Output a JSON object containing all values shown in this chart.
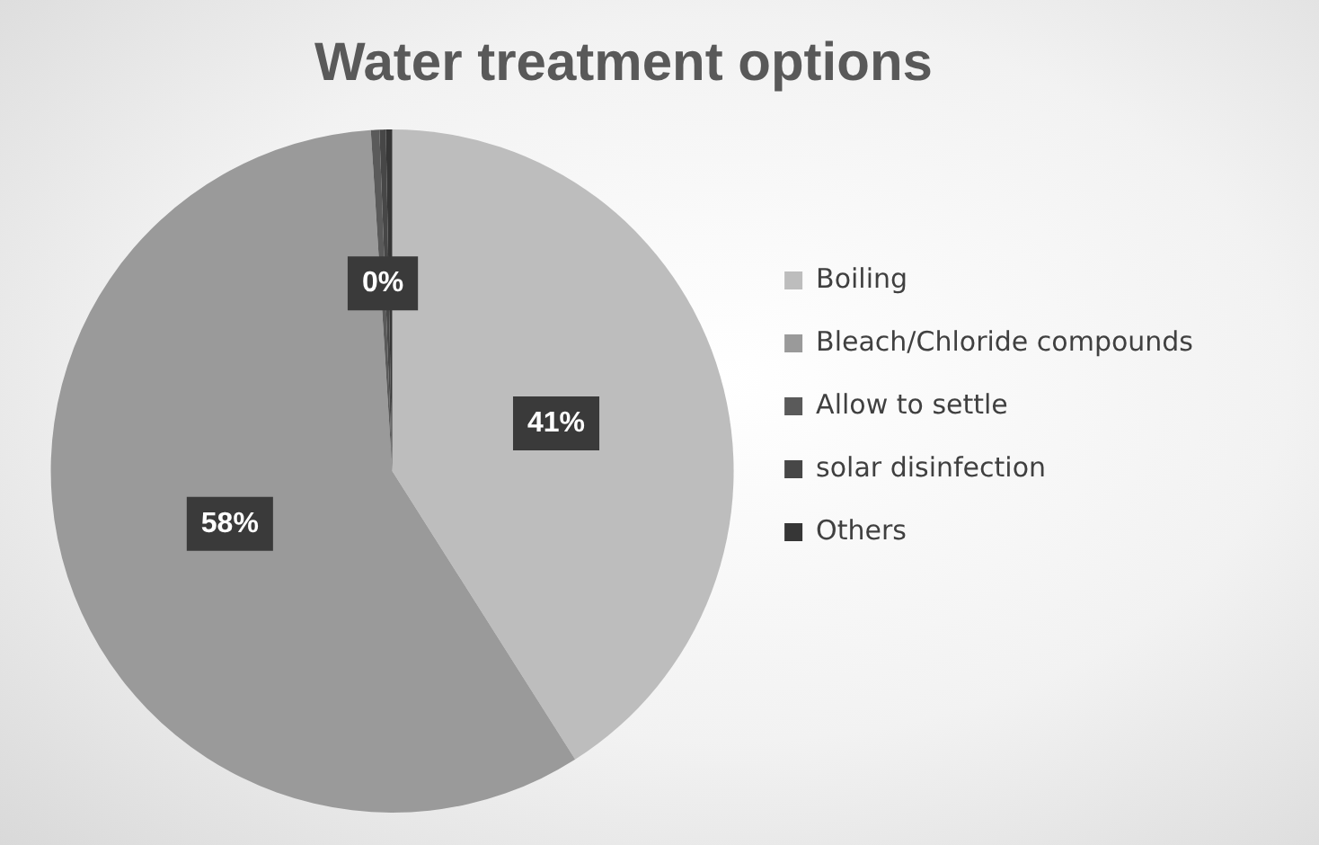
{
  "chart_data": {
    "type": "pie",
    "title": "Water treatment options",
    "categories": [
      "Boiling",
      "Bleach/Chloride compounds",
      "Allow to settle",
      "solar disinfection",
      "Others"
    ],
    "values": [
      41,
      58,
      0.4,
      0.3,
      0.3
    ],
    "colors": [
      "#bdbdbd",
      "#9a9a9a",
      "#5a5a5a",
      "#474747",
      "#363636"
    ],
    "value_labels": [
      "41%",
      "58%",
      "0%",
      null,
      null
    ],
    "legend": "right"
  }
}
